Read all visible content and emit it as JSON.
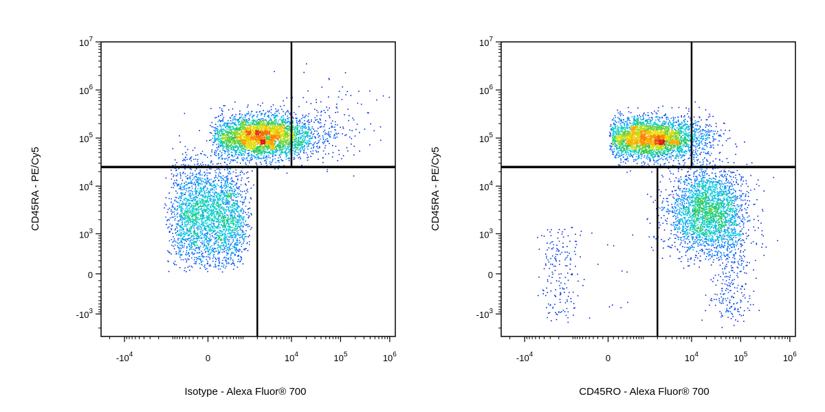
{
  "chart_data": [
    {
      "type": "scatter",
      "subtype": "flow-cytometry-density-dot-plot",
      "xlabel": "Isotype - Alexa Fluor® 700",
      "ylabel": "CD45RA - PE/Cy5",
      "x_scale": "biexponential",
      "y_scale": "biexponential",
      "xlim": [
        -30000,
        1300000
      ],
      "ylim": [
        -3000,
        10000000
      ],
      "x_ticks": [
        {
          "value": -10000,
          "base": "-10",
          "exp": "4"
        },
        {
          "value": 0,
          "base": "0",
          "exp": ""
        },
        {
          "value": 10000,
          "base": "10",
          "exp": "4"
        },
        {
          "value": 100000,
          "base": "10",
          "exp": "5"
        },
        {
          "value": 1000000,
          "base": "10",
          "exp": "6"
        }
      ],
      "y_ticks": [
        {
          "value": 10000000,
          "base": "10",
          "exp": "7"
        },
        {
          "value": 1000000,
          "base": "10",
          "exp": "6"
        },
        {
          "value": 100000,
          "base": "10",
          "exp": "5"
        },
        {
          "value": 10000,
          "base": "10",
          "exp": "4"
        },
        {
          "value": 1000,
          "base": "10",
          "exp": "3"
        },
        {
          "value": 0,
          "base": "0",
          "exp": ""
        },
        {
          "value": -1000,
          "base": "-10",
          "exp": "3"
        }
      ],
      "quadrant_gates": {
        "upper_x": 10000,
        "lower_x": 2000,
        "y": 25000
      },
      "populations": [
        {
          "x_median": 2500,
          "y_median": 110000,
          "x_spread": 0.55,
          "y_spread": 0.22,
          "weight": 0.55
        },
        {
          "x_median": 0,
          "y_median": 2500,
          "x_spread": 500,
          "y_spread": 0.55,
          "weight": 0.43
        },
        {
          "x_median": 60000,
          "y_median": 250000,
          "x_spread": 0.5,
          "y_spread": 0.4,
          "weight": 0.02
        }
      ],
      "grid": false,
      "legend": "none"
    },
    {
      "type": "scatter",
      "subtype": "flow-cytometry-density-dot-plot",
      "xlabel": "CD45RO - Alexa Fluor® 700",
      "ylabel": "CD45RA - PE/Cy5",
      "x_scale": "biexponential",
      "y_scale": "biexponential",
      "xlim": [
        -30000,
        1300000
      ],
      "ylim": [
        -3000,
        10000000
      ],
      "x_ticks": [
        {
          "value": -10000,
          "base": "-10",
          "exp": "4"
        },
        {
          "value": 0,
          "base": "0",
          "exp": ""
        },
        {
          "value": 10000,
          "base": "10",
          "exp": "4"
        },
        {
          "value": 100000,
          "base": "10",
          "exp": "5"
        },
        {
          "value": 1000000,
          "base": "10",
          "exp": "6"
        }
      ],
      "y_ticks": [
        {
          "value": 10000000,
          "base": "10",
          "exp": "7"
        },
        {
          "value": 1000000,
          "base": "10",
          "exp": "6"
        },
        {
          "value": 100000,
          "base": "10",
          "exp": "5"
        },
        {
          "value": 10000,
          "base": "10",
          "exp": "4"
        },
        {
          "value": 1000,
          "base": "10",
          "exp": "3"
        },
        {
          "value": 0,
          "base": "0",
          "exp": ""
        },
        {
          "value": -1000,
          "base": "-10",
          "exp": "3"
        }
      ],
      "quadrant_gates": {
        "upper_x": 10000,
        "lower_x": 2000,
        "y": 25000
      },
      "populations": [
        {
          "x_median": 1500,
          "y_median": 100000,
          "x_spread": 0.55,
          "y_spread": 0.22,
          "weight": 0.52
        },
        {
          "x_median": 20000,
          "y_median": 3000,
          "x_spread": 0.4,
          "y_spread": 0.45,
          "weight": 0.4
        },
        {
          "x_median": 60000,
          "y_median": 0,
          "x_spread": 0.2,
          "y_spread": 600,
          "weight": 0.05
        },
        {
          "x_median": -2000,
          "y_median": 0,
          "x_spread": 1200,
          "y_spread": 600,
          "weight": 0.03
        }
      ],
      "grid": false,
      "legend": "none"
    }
  ]
}
